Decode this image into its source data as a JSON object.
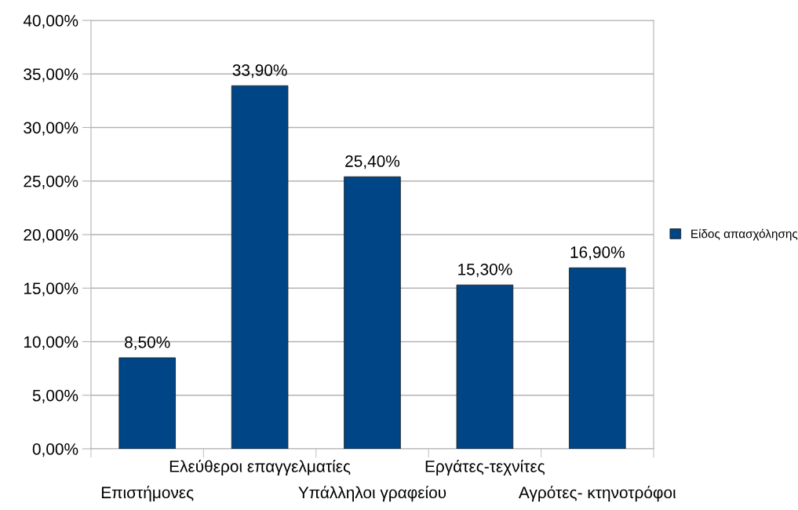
{
  "chart_data": {
    "type": "bar",
    "categories": [
      "Επιστήμονες",
      "Ελεύθεροι επαγγελματίες",
      "Υπάλληλοι γραφείου",
      "Εργάτες-τεχνίτες",
      "Αγρότες- κτηνοτρόφοι"
    ],
    "series": [
      {
        "name": "Είδος απασχόλησης",
        "color": "#004586",
        "values": [
          8.5,
          33.9,
          25.4,
          15.3,
          16.9
        ],
        "value_labels": [
          "8,50%",
          "33,90%",
          "25,40%",
          "15,30%",
          "16,90%"
        ]
      }
    ],
    "ylim": [
      0,
      40
    ],
    "yticks": [
      {
        "value": 0,
        "label": "0,00%"
      },
      {
        "value": 5,
        "label": "5,00%"
      },
      {
        "value": 10,
        "label": "10,00%"
      },
      {
        "value": 15,
        "label": "15,00%"
      },
      {
        "value": 20,
        "label": "20,00%"
      },
      {
        "value": 25,
        "label": "25,00%"
      },
      {
        "value": 30,
        "label": "30,00%"
      },
      {
        "value": 35,
        "label": "35,00%"
      },
      {
        "value": 40,
        "label": "40,00%"
      }
    ],
    "grid": "y",
    "legend": "right"
  }
}
